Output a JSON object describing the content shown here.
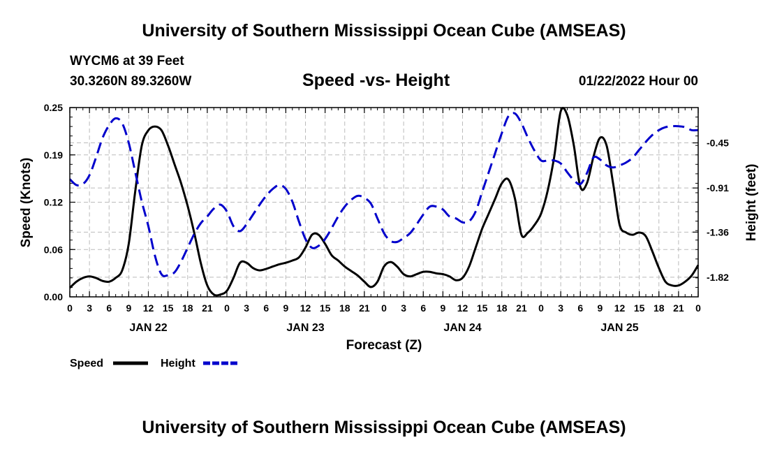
{
  "header": {
    "title": "University of Southern Mississippi Ocean Cube (AMSEAS)",
    "station": "WYCM6 at 39 Feet",
    "coords": "30.3260N  89.3260W",
    "subtitle": "Speed -vs- Height",
    "datetime": "01/22/2022 Hour 00"
  },
  "footer": {
    "title": "University of Southern Mississippi Ocean Cube (AMSEAS)"
  },
  "legend": {
    "speed_label": "Speed",
    "height_label": "Height"
  },
  "colors": {
    "speed": "#000000",
    "height": "#0000cc",
    "grid": "#bbbbbb"
  },
  "chart_data": {
    "type": "line",
    "title": "Speed -vs- Height",
    "xlabel": "Forecast (Z)",
    "ylabel_left": "Speed (Knots)",
    "ylabel_right": "Height (feet)",
    "x_range_hours": [
      0,
      96
    ],
    "x_tick_labels": [
      "0",
      "3",
      "6",
      "9",
      "12",
      "15",
      "18",
      "21",
      "0",
      "3",
      "6",
      "9",
      "12",
      "15",
      "18",
      "21",
      "0",
      "3",
      "6",
      "9",
      "12",
      "15",
      "18",
      "21",
      "0",
      "3",
      "6",
      "9",
      "12",
      "15",
      "18",
      "21",
      "0"
    ],
    "day_labels": [
      {
        "label": "JAN 22",
        "hour": 12
      },
      {
        "label": "JAN 23",
        "hour": 36
      },
      {
        "label": "JAN 24",
        "hour": 60
      },
      {
        "label": "JAN 25",
        "hour": 84
      }
    ],
    "y_left": {
      "min": 0,
      "max": 0.25,
      "ticks": [
        "0.00",
        "0.06",
        "0.12",
        "0.19",
        "0.25"
      ]
    },
    "y_right": {
      "min": -2.02,
      "max": -0.09,
      "ticks": [
        "-1.82",
        "-1.36",
        "-0.91",
        "-0.45"
      ]
    },
    "grid": true,
    "series": [
      {
        "name": "Speed",
        "axis": "left",
        "style": "solid",
        "x": [
          0,
          1,
          2,
          3,
          4,
          5,
          6,
          7,
          8,
          9,
          10,
          11,
          12,
          13,
          14,
          15,
          16,
          17,
          18,
          19,
          20,
          21,
          22,
          23,
          24,
          25,
          26,
          27,
          28,
          29,
          30,
          31,
          32,
          33,
          34,
          35,
          36,
          37,
          38,
          39,
          40,
          41,
          42,
          43,
          44,
          45,
          46,
          47,
          48,
          49,
          50,
          51,
          52,
          53,
          54,
          55,
          56,
          57,
          58,
          59,
          60,
          61,
          62,
          63,
          64,
          65,
          66,
          67,
          68,
          69,
          70,
          71,
          72,
          73,
          74,
          75,
          76,
          77,
          78,
          79,
          80,
          81,
          82,
          83,
          84,
          85,
          86,
          87,
          88,
          89,
          90,
          91,
          92,
          93,
          94,
          95,
          96
        ],
        "values": [
          0.012,
          0.02,
          0.025,
          0.027,
          0.025,
          0.021,
          0.02,
          0.025,
          0.035,
          0.07,
          0.14,
          0.2,
          0.22,
          0.225,
          0.22,
          0.2,
          0.175,
          0.15,
          0.12,
          0.085,
          0.045,
          0.015,
          0.003,
          0.003,
          0.008,
          0.025,
          0.045,
          0.045,
          0.038,
          0.035,
          0.037,
          0.04,
          0.043,
          0.045,
          0.048,
          0.052,
          0.065,
          0.082,
          0.082,
          0.07,
          0.055,
          0.048,
          0.04,
          0.034,
          0.028,
          0.02,
          0.013,
          0.02,
          0.04,
          0.046,
          0.04,
          0.03,
          0.027,
          0.03,
          0.033,
          0.033,
          0.031,
          0.03,
          0.027,
          0.022,
          0.025,
          0.04,
          0.065,
          0.09,
          0.11,
          0.13,
          0.15,
          0.155,
          0.13,
          0.082,
          0.085,
          0.095,
          0.11,
          0.14,
          0.185,
          0.245,
          0.24,
          0.2,
          0.145,
          0.15,
          0.185,
          0.21,
          0.2,
          0.15,
          0.095,
          0.085,
          0.082,
          0.085,
          0.08,
          0.06,
          0.038,
          0.02,
          0.015,
          0.015,
          0.02,
          0.028,
          0.042
        ]
      },
      {
        "name": "Height",
        "axis": "right",
        "style": "dashed",
        "x": [
          0,
          1,
          2,
          3,
          4,
          5,
          6,
          7,
          8,
          9,
          10,
          11,
          12,
          13,
          14,
          15,
          16,
          17,
          18,
          19,
          20,
          21,
          22,
          23,
          24,
          25,
          26,
          27,
          28,
          29,
          30,
          31,
          32,
          33,
          34,
          35,
          36,
          37,
          38,
          39,
          40,
          41,
          42,
          43,
          44,
          45,
          46,
          47,
          48,
          49,
          50,
          51,
          52,
          53,
          54,
          55,
          56,
          57,
          58,
          59,
          60,
          61,
          62,
          63,
          64,
          65,
          66,
          67,
          68,
          69,
          70,
          71,
          72,
          73,
          74,
          75,
          76,
          77,
          78,
          79,
          80,
          81,
          82,
          83,
          84,
          85,
          86,
          87,
          88,
          89,
          90,
          91,
          92,
          93,
          94,
          95,
          96
        ],
        "values": [
          -0.82,
          -0.88,
          -0.87,
          -0.78,
          -0.6,
          -0.4,
          -0.27,
          -0.2,
          -0.25,
          -0.45,
          -0.75,
          -1.05,
          -1.3,
          -1.6,
          -1.79,
          -1.8,
          -1.77,
          -1.66,
          -1.52,
          -1.38,
          -1.27,
          -1.2,
          -1.12,
          -1.08,
          -1.15,
          -1.3,
          -1.35,
          -1.28,
          -1.18,
          -1.08,
          -0.99,
          -0.92,
          -0.88,
          -0.92,
          -1.05,
          -1.25,
          -1.43,
          -1.52,
          -1.5,
          -1.43,
          -1.32,
          -1.2,
          -1.1,
          -1.03,
          -0.99,
          -1.01,
          -1.07,
          -1.22,
          -1.37,
          -1.45,
          -1.46,
          -1.42,
          -1.37,
          -1.28,
          -1.18,
          -1.1,
          -1.1,
          -1.13,
          -1.2,
          -1.22,
          -1.26,
          -1.25,
          -1.15,
          -0.95,
          -0.75,
          -0.55,
          -0.35,
          -0.18,
          -0.15,
          -0.25,
          -0.4,
          -0.53,
          -0.63,
          -0.63,
          -0.63,
          -0.66,
          -0.75,
          -0.83,
          -0.87,
          -0.76,
          -0.6,
          -0.62,
          -0.68,
          -0.7,
          -0.68,
          -0.65,
          -0.6,
          -0.52,
          -0.44,
          -0.37,
          -0.32,
          -0.29,
          -0.28,
          -0.28,
          -0.29,
          -0.32,
          -0.32
        ]
      }
    ]
  }
}
